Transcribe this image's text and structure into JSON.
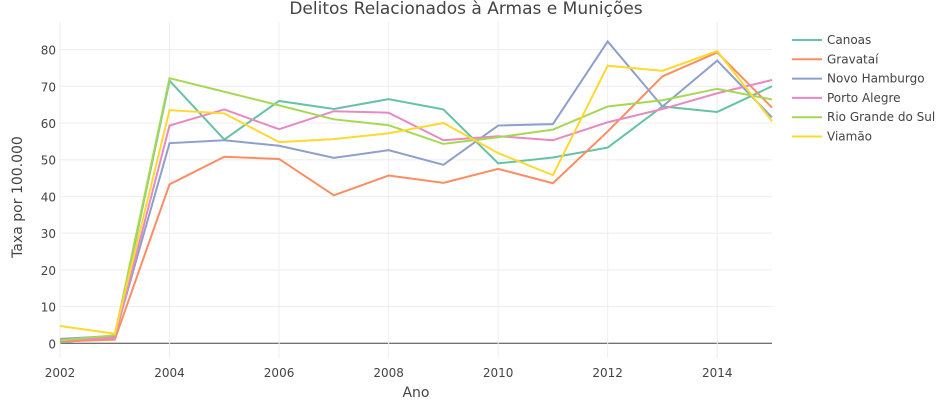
{
  "chart_data": {
    "type": "line",
    "title": "Delitos Relacionados à Armas e Munições",
    "xlabel": "Ano",
    "ylabel": "Taxa por 100.000",
    "x": [
      2002,
      2003,
      2004,
      2005,
      2006,
      2007,
      2008,
      2009,
      2010,
      2011,
      2012,
      2013,
      2014,
      2015
    ],
    "xticks": [
      "2002",
      "2004",
      "2006",
      "2008",
      "2010",
      "2012",
      "2014"
    ],
    "yticks": [
      "0",
      "10",
      "20",
      "30",
      "40",
      "50",
      "60",
      "70",
      "80"
    ],
    "xlim": [
      2002,
      2015
    ],
    "ylim": [
      -4,
      87.5
    ],
    "grid": true,
    "legend_position": "right",
    "series": [
      {
        "name": "Canoas",
        "color": "#66c2a5",
        "values": [
          0.3,
          1.5,
          71.5,
          55.5,
          66,
          63.8,
          66.5,
          63.7,
          49,
          50.6,
          53.3,
          64.5,
          63,
          70
        ]
      },
      {
        "name": "Gravataí",
        "color": "#fc8d62",
        "values": [
          0.5,
          1,
          43.3,
          50.8,
          50.2,
          40.3,
          45.7,
          43.7,
          47.5,
          43.6,
          57.7,
          72.7,
          79.2,
          64.2
        ]
      },
      {
        "name": "Novo Hamburgo",
        "color": "#8da0cb",
        "values": [
          1.2,
          2,
          54.5,
          55.3,
          53.8,
          50.5,
          52.6,
          48.6,
          59.3,
          59.7,
          82.2,
          64.5,
          77,
          61.5
        ]
      },
      {
        "name": "Porto Alegre",
        "color": "#e78ac3",
        "values": [
          0.8,
          1.5,
          59.3,
          63.7,
          58.3,
          63.2,
          62.8,
          55.3,
          56.4,
          55.3,
          60.2,
          63.8,
          68.1,
          71.7
        ]
      },
      {
        "name": "Rio Grande do Sul",
        "color": "#a6d854",
        "values": [
          0.8,
          2.2,
          72.2,
          68.5,
          64.8,
          61,
          59.4,
          54.3,
          56.1,
          58.2,
          64.5,
          66.2,
          69.3,
          66.4
        ]
      },
      {
        "name": "Viamão",
        "color": "#ffd92f",
        "values": [
          4.7,
          2.6,
          63.5,
          62.6,
          54.8,
          55.6,
          57.2,
          60,
          51.8,
          45.8,
          75.6,
          74.2,
          79.6,
          60.5
        ]
      }
    ]
  }
}
